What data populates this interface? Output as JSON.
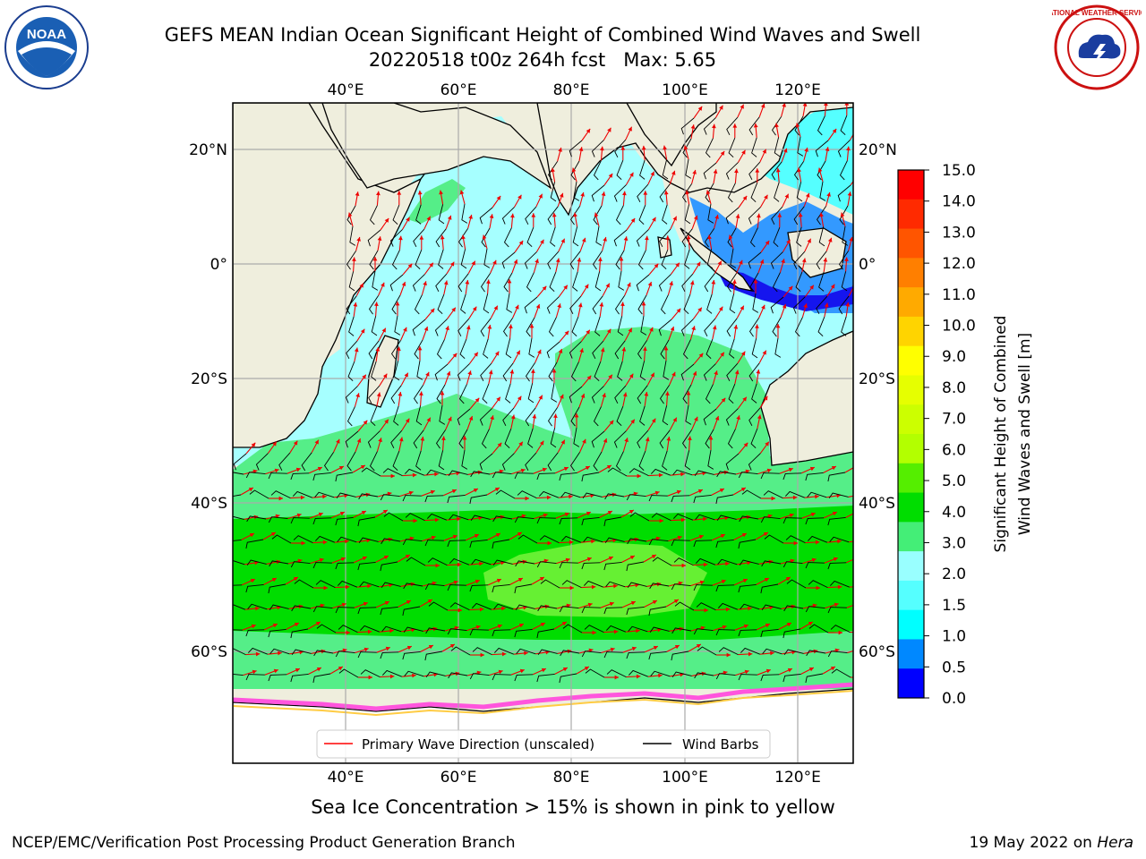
{
  "title": {
    "line1": "GEFS MEAN Indian Ocean Significant Height of Combined Wind Waves and Swell",
    "line2": "20220518 t00z 264h fcst   Max: 5.65"
  },
  "logos": {
    "left": {
      "icon": "noaa-logo",
      "text": "NOAA"
    },
    "right": {
      "icon": "national-weather-service-logo",
      "text": "NATIONAL WEATHER SERVICE"
    }
  },
  "map": {
    "projection": "lon-lat",
    "lon_range": [
      20,
      130
    ],
    "lat_range": [
      -70,
      28
    ],
    "grid": true,
    "lon_ticks": [
      "40°E",
      "60°E",
      "80°E",
      "100°E",
      "120°E"
    ],
    "lat_ticks": [
      "20°N",
      "0°",
      "20°S",
      "40°S",
      "60°S"
    ],
    "max_value": 5.65,
    "wave_bands": [
      {
        "lat_range": [
          28,
          -35
        ],
        "value": 2.5,
        "desc": "light cyan"
      },
      {
        "lat_range": [
          -35,
          -45
        ],
        "value": 3.5,
        "desc": "light green"
      },
      {
        "lat_range": [
          -45,
          -58
        ],
        "value": 4.5,
        "desc": "green"
      },
      {
        "lat_range": [
          -58,
          -68
        ],
        "value": 3.5,
        "desc": "light green"
      }
    ]
  },
  "legend": {
    "entries": [
      {
        "label": "Primary Wave Direction (unscaled)",
        "color": "#ff0000"
      },
      {
        "label": "Wind Barbs",
        "color": "#000000"
      }
    ]
  },
  "colorbar": {
    "label_line1": "Significant Height of Combined",
    "label_line2": "Wind Waves and Swell [m]",
    "ticks": [
      "15.0",
      "14.0",
      "13.0",
      "12.0",
      "11.0",
      "10.0",
      "9.0",
      "8.0",
      "7.0",
      "6.0",
      "5.0",
      "4.0",
      "3.0",
      "2.0",
      "1.5",
      "1.0",
      "0.5",
      "0.0"
    ],
    "colors_top_to_bottom": [
      "#ff0000",
      "#ff2a00",
      "#ff5500",
      "#ff7f00",
      "#ffaa00",
      "#ffd400",
      "#ffff00",
      "#e6ff00",
      "#ccff00",
      "#b3ff00",
      "#55ee00",
      "#00dd00",
      "#44ee77",
      "#99ffff",
      "#55ffff",
      "#00ffff",
      "#0088ff",
      "#0000ff"
    ]
  },
  "footnote": "Sea Ice Concentration > 15% is shown in pink to yellow",
  "credit": "NCEP/EMC/Verification Post Processing Product Generation Branch",
  "date_stamp": {
    "prefix": "19 May 2022 on ",
    "host": "Hera"
  }
}
